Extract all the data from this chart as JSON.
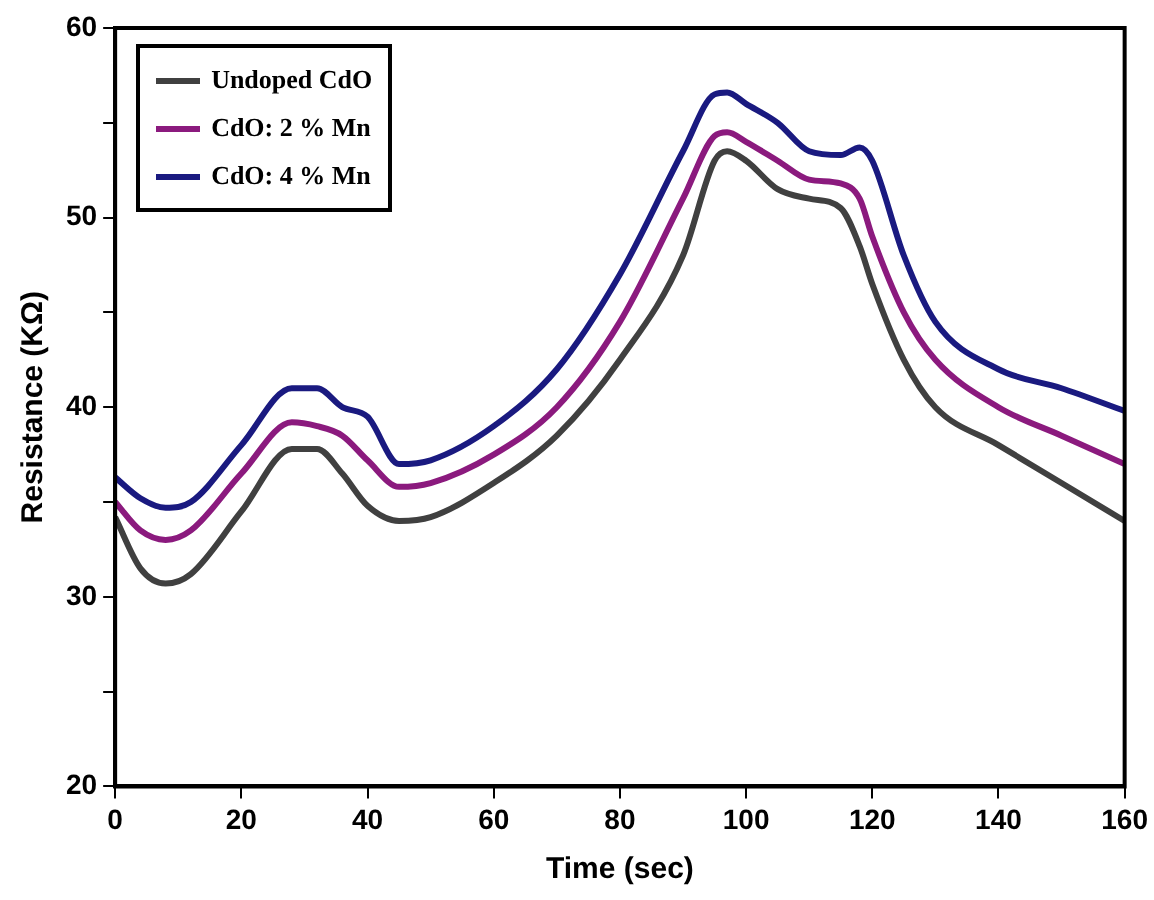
{
  "chart_data": {
    "type": "line",
    "xlabel": "Time (sec)",
    "ylabel": "Resistance (KΩ)",
    "x": [
      0,
      4,
      8,
      12,
      20,
      28,
      32,
      36,
      40,
      45,
      50,
      60,
      70,
      80,
      90,
      95,
      97,
      100,
      105,
      110,
      115,
      118,
      120,
      125,
      130,
      140,
      150,
      160
    ],
    "series": [
      {
        "name": "Undoped CdO",
        "color": "#404040",
        "values": [
          34.2,
          31.5,
          30.7,
          31.2,
          34.5,
          37.8,
          37.8,
          36.5,
          34.8,
          34,
          34.2,
          36,
          38.5,
          42.5,
          48,
          53,
          53.5,
          53,
          51.5,
          51,
          50.5,
          48.5,
          46.5,
          42.5,
          40,
          38,
          36,
          34
        ]
      },
      {
        "name": "CdO: 2 % Mn",
        "color": "#8b1a7e",
        "values": [
          35,
          33.5,
          33,
          33.5,
          36.5,
          39.2,
          39,
          38.5,
          37.2,
          35.8,
          36,
          37.5,
          40,
          44.5,
          51,
          54.3,
          54.5,
          54,
          53,
          52,
          51.8,
          51,
          49,
          45,
          42.5,
          40,
          38.5,
          37
        ]
      },
      {
        "name": "CdO: 4 % Mn",
        "color": "#1a1a80",
        "values": [
          36.3,
          35.2,
          34.7,
          35,
          38,
          41,
          41,
          40,
          39.5,
          37,
          37.2,
          39,
          42,
          47,
          53.5,
          56.5,
          56.6,
          56,
          55,
          53.5,
          53.3,
          53.7,
          53,
          48,
          44.5,
          42,
          41,
          39.8
        ]
      }
    ],
    "xlim": [
      0,
      160
    ],
    "xticks": [
      0,
      20,
      40,
      60,
      80,
      100,
      120,
      140,
      160
    ],
    "ylim": [
      20,
      60
    ],
    "yticks": [
      20,
      {
        "value": 25,
        "label": null
      },
      30,
      {
        "value": 35,
        "label": null
      },
      40,
      {
        "value": 45,
        "label": null
      },
      50,
      {
        "value": 55,
        "label": null
      },
      60
    ],
    "grid": false,
    "legend": "top left",
    "marker": "none",
    "line_style": "solid"
  }
}
